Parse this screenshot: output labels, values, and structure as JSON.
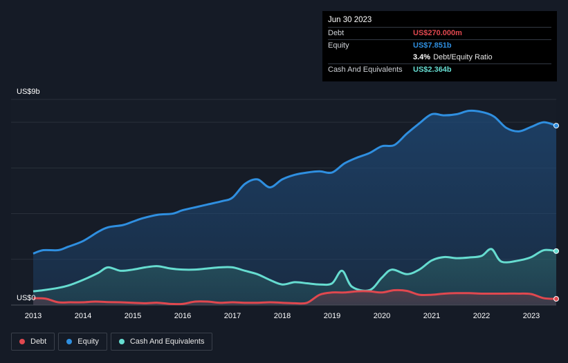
{
  "chart_data": {
    "type": "area",
    "y_unit_top_label": "US$9b",
    "y_unit_bottom_label": "US$0",
    "ylim": [
      0,
      9
    ],
    "xlim": [
      2013.0,
      2023.5
    ],
    "x_ticks": [
      "2013",
      "2014",
      "2015",
      "2016",
      "2017",
      "2018",
      "2019",
      "2020",
      "2021",
      "2022",
      "2023"
    ],
    "series": [
      {
        "name": "Equity",
        "color": "#2f8fe0",
        "x": [
          2013.0,
          2013.2,
          2013.5,
          2013.7,
          2014.0,
          2014.3,
          2014.5,
          2014.8,
          2015.0,
          2015.2,
          2015.5,
          2015.8,
          2016.0,
          2016.3,
          2016.5,
          2016.8,
          2017.0,
          2017.25,
          2017.5,
          2017.75,
          2018.0,
          2018.25,
          2018.5,
          2018.75,
          2019.0,
          2019.25,
          2019.5,
          2019.75,
          2020.0,
          2020.25,
          2020.5,
          2020.75,
          2021.0,
          2021.25,
          2021.5,
          2021.75,
          2022.0,
          2022.25,
          2022.5,
          2022.75,
          2023.0,
          2023.25,
          2023.5
        ],
        "values": [
          2.25,
          2.4,
          2.4,
          2.55,
          2.8,
          3.2,
          3.4,
          3.5,
          3.65,
          3.8,
          3.95,
          4.0,
          4.15,
          4.3,
          4.4,
          4.55,
          4.7,
          5.3,
          5.5,
          5.15,
          5.5,
          5.7,
          5.8,
          5.85,
          5.8,
          6.2,
          6.45,
          6.65,
          6.95,
          7.0,
          7.5,
          7.95,
          8.35,
          8.3,
          8.35,
          8.5,
          8.45,
          8.25,
          7.75,
          7.6,
          7.8,
          8.0,
          7.85
        ]
      },
      {
        "name": "Cash And Equivalents",
        "color": "#66dcd0",
        "x": [
          2013.0,
          2013.2,
          2013.5,
          2013.7,
          2014.0,
          2014.3,
          2014.5,
          2014.75,
          2015.0,
          2015.25,
          2015.5,
          2015.75,
          2016.0,
          2016.25,
          2016.5,
          2016.75,
          2017.0,
          2017.25,
          2017.5,
          2017.75,
          2018.0,
          2018.25,
          2018.5,
          2018.75,
          2019.0,
          2019.2,
          2019.4,
          2019.75,
          2020.0,
          2020.2,
          2020.5,
          2020.75,
          2021.0,
          2021.25,
          2021.5,
          2021.75,
          2022.0,
          2022.2,
          2022.4,
          2022.75,
          2023.0,
          2023.25,
          2023.5
        ],
        "values": [
          0.6,
          0.65,
          0.75,
          0.85,
          1.1,
          1.4,
          1.65,
          1.5,
          1.55,
          1.65,
          1.7,
          1.6,
          1.55,
          1.55,
          1.6,
          1.65,
          1.65,
          1.5,
          1.35,
          1.1,
          0.9,
          1.0,
          0.95,
          0.9,
          0.95,
          1.5,
          0.8,
          0.65,
          1.2,
          1.55,
          1.35,
          1.55,
          1.95,
          2.1,
          2.05,
          2.08,
          2.15,
          2.45,
          1.9,
          1.95,
          2.1,
          2.4,
          2.36
        ]
      },
      {
        "name": "Debt",
        "color": "#e0484f",
        "x": [
          2013.0,
          2013.25,
          2013.5,
          2013.75,
          2014.0,
          2014.25,
          2014.5,
          2014.75,
          2015.0,
          2015.25,
          2015.5,
          2015.75,
          2016.0,
          2016.25,
          2016.5,
          2016.75,
          2017.0,
          2017.25,
          2017.5,
          2017.75,
          2018.0,
          2018.25,
          2018.5,
          2018.75,
          2019.0,
          2019.25,
          2019.5,
          2019.75,
          2020.0,
          2020.25,
          2020.5,
          2020.75,
          2021.0,
          2021.25,
          2021.5,
          2021.75,
          2022.0,
          2022.25,
          2022.5,
          2022.75,
          2023.0,
          2023.25,
          2023.5
        ],
        "values": [
          0.3,
          0.28,
          0.12,
          0.12,
          0.12,
          0.15,
          0.13,
          0.12,
          0.1,
          0.08,
          0.1,
          0.05,
          0.05,
          0.15,
          0.15,
          0.1,
          0.12,
          0.1,
          0.1,
          0.12,
          0.1,
          0.08,
          0.1,
          0.45,
          0.55,
          0.55,
          0.6,
          0.6,
          0.55,
          0.65,
          0.62,
          0.45,
          0.45,
          0.5,
          0.52,
          0.52,
          0.5,
          0.5,
          0.5,
          0.5,
          0.48,
          0.3,
          0.27
        ]
      }
    ]
  },
  "tooltip": {
    "date": "Jun 30 2023",
    "rows": [
      {
        "label": "Debt",
        "value": "US$270.000m",
        "color": "#e0484f"
      },
      {
        "label": "Equity",
        "value": "US$7.851b",
        "color": "#2f8fe0"
      },
      {
        "label": "",
        "value": "3.4%",
        "suffix": "Debt/Equity Ratio",
        "color": "#ffffff"
      },
      {
        "label": "Cash And Equivalents",
        "value": "US$2.364b",
        "color": "#66dcd0"
      }
    ]
  },
  "legend": [
    {
      "label": "Debt",
      "color": "#e0484f"
    },
    {
      "label": "Equity",
      "color": "#2f8fe0"
    },
    {
      "label": "Cash And Equivalents",
      "color": "#66dcd0"
    }
  ]
}
